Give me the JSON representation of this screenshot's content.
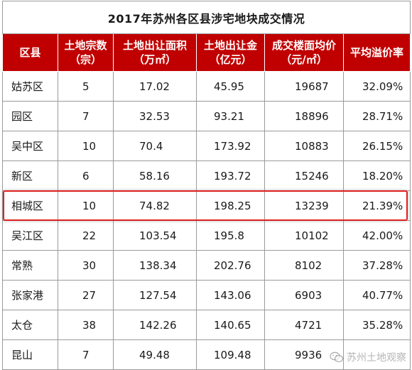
{
  "table": {
    "title": "2017年苏州各区县涉宅地块成交情况",
    "headers": [
      {
        "line1": "区县",
        "line2": ""
      },
      {
        "line1": "土地宗数",
        "line2": "（宗）"
      },
      {
        "line1": "土地出让面积",
        "line2": "（万㎡）"
      },
      {
        "line1": "土地出让金",
        "line2": "（亿元）"
      },
      {
        "line1": "成交楼面均价",
        "line2": "（元/㎡）"
      },
      {
        "line1": "平均溢价率",
        "line2": ""
      }
    ],
    "rows": [
      [
        "姑苏区",
        "5",
        "17.02",
        "45.95",
        "19687",
        "32.09%"
      ],
      [
        "园区",
        "7",
        "32.53",
        "93.21",
        "18896",
        "28.71%"
      ],
      [
        "吴中区",
        "10",
        "70.4",
        "173.92",
        "10883",
        "26.15%"
      ],
      [
        "新区",
        "6",
        "58.16",
        "193.72",
        "15246",
        "18.20%"
      ],
      [
        "相城区",
        "10",
        "74.82",
        "198.25",
        "13239",
        "21.39%"
      ],
      [
        "吴江区",
        "22",
        "103.54",
        "195.8",
        "10102",
        "42.00%"
      ],
      [
        "常熟",
        "30",
        "138.34",
        "202.76",
        "8102",
        "37.28%"
      ],
      [
        "张家港",
        "27",
        "127.54",
        "143.06",
        "6903",
        "40.77%"
      ],
      [
        "太仓",
        "38",
        "142.26",
        "140.65",
        "4721",
        "35.28%"
      ],
      [
        "昆山",
        "7",
        "49.48",
        "109.48",
        "9936",
        ""
      ]
    ],
    "highlighted_row": "相城区"
  },
  "watermark": {
    "text": "苏州土地观察",
    "icon": "wechat-icon"
  },
  "colors": {
    "header_bg": "#c00000",
    "header_text": "#ffffff",
    "highlight_border": "#e02020",
    "grid": "#9a9a9a"
  }
}
